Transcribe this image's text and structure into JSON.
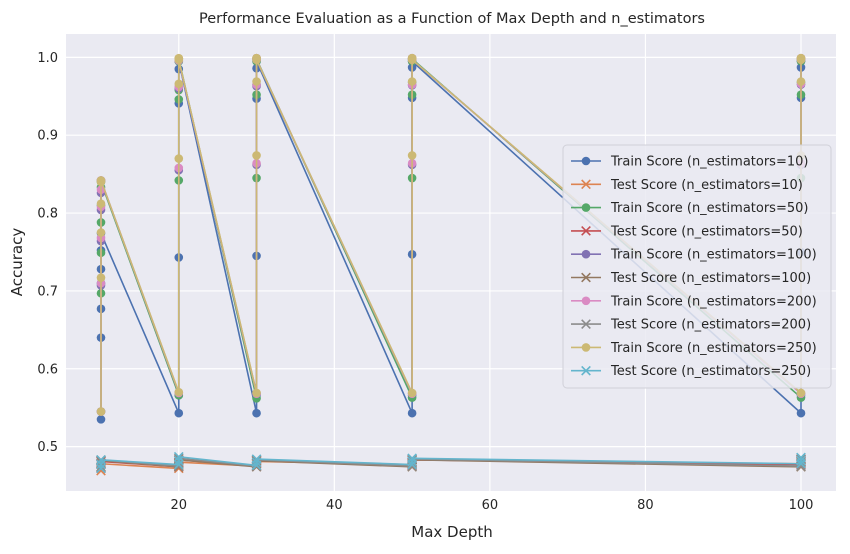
{
  "chart_data": {
    "type": "line",
    "title": "Performance Evaluation as a Function of Max Depth and n_estimators",
    "xlabel": "Max Depth",
    "ylabel": "Accuracy",
    "xlim": [
      5.5,
      104.5
    ],
    "ylim": [
      0.443,
      1.03
    ],
    "xticks": [
      20,
      40,
      60,
      80,
      100
    ],
    "yticks": [
      0.5,
      0.6,
      0.7,
      0.8,
      0.9,
      1.0
    ],
    "x": [
      10,
      20,
      30,
      50,
      100
    ],
    "grid": true,
    "legend_position": "center right",
    "background": "#eaeaf2",
    "series": [
      {
        "name": "Train Score (n_estimators=10)",
        "marker": "circle",
        "color": "#4c72b0",
        "x": [
          10,
          10,
          10,
          10,
          10,
          10,
          10,
          20,
          20,
          20,
          20,
          20,
          20,
          30,
          30,
          30,
          30,
          30,
          30,
          50,
          50,
          50,
          50,
          50,
          50,
          100,
          100,
          100,
          100,
          100,
          100
        ],
        "y": [
          0.535,
          0.64,
          0.677,
          0.71,
          0.728,
          0.752,
          0.774,
          0.543,
          0.566,
          0.743,
          0.941,
          0.985,
          0.995,
          0.543,
          0.566,
          0.745,
          0.947,
          0.986,
          0.995,
          0.543,
          0.566,
          0.747,
          0.948,
          0.987,
          0.995,
          0.543,
          0.566,
          0.75,
          0.948,
          0.987,
          0.995
        ]
      },
      {
        "name": "Test Score (n_estimators=10)",
        "marker": "x",
        "color": "#dd8452",
        "x": [
          10,
          10,
          10,
          20,
          20,
          20,
          30,
          30,
          30,
          50,
          50,
          50,
          100,
          100,
          100
        ],
        "y": [
          0.469,
          0.474,
          0.478,
          0.472,
          0.476,
          0.48,
          0.475,
          0.478,
          0.481,
          0.477,
          0.48,
          0.483,
          0.478,
          0.481,
          0.484
        ]
      },
      {
        "name": "Train Score (n_estimators=50)",
        "marker": "circle",
        "color": "#55a868",
        "x": [
          10,
          10,
          10,
          10,
          10,
          10,
          10,
          20,
          20,
          20,
          20,
          20,
          20,
          30,
          30,
          30,
          30,
          30,
          30,
          50,
          50,
          50,
          50,
          50,
          50,
          100,
          100,
          100,
          100,
          100,
          100
        ],
        "y": [
          0.545,
          0.697,
          0.749,
          0.788,
          0.81,
          0.833,
          0.84,
          0.566,
          0.842,
          0.946,
          0.958,
          0.995,
          0.998,
          0.562,
          0.845,
          0.952,
          0.965,
          0.995,
          0.998,
          0.563,
          0.845,
          0.952,
          0.968,
          0.995,
          0.998,
          0.563,
          0.845,
          0.952,
          0.968,
          0.995,
          0.998
        ]
      },
      {
        "name": "Test Score (n_estimators=50)",
        "marker": "x",
        "color": "#c44e52",
        "x": [
          10,
          10,
          10,
          20,
          20,
          20,
          30,
          30,
          30,
          50,
          50,
          50,
          100,
          100,
          100
        ],
        "y": [
          0.472,
          0.477,
          0.481,
          0.474,
          0.479,
          0.483,
          0.475,
          0.479,
          0.482,
          0.476,
          0.48,
          0.483,
          0.477,
          0.481,
          0.484
        ]
      },
      {
        "name": "Train Score (n_estimators=100)",
        "marker": "circle",
        "color": "#8172b3",
        "x": [
          10,
          10,
          10,
          10,
          10,
          10,
          20,
          20,
          20,
          20,
          20,
          30,
          30,
          30,
          30,
          30,
          50,
          50,
          50,
          50,
          50,
          100,
          100,
          100,
          100,
          100
        ],
        "y": [
          0.545,
          0.707,
          0.764,
          0.804,
          0.826,
          0.842,
          0.569,
          0.855,
          0.96,
          0.998,
          0.996,
          0.568,
          0.862,
          0.963,
          0.999,
          0.997,
          0.568,
          0.862,
          0.964,
          0.999,
          0.997,
          0.568,
          0.862,
          0.965,
          0.999,
          0.997
        ]
      },
      {
        "name": "Test Score (n_estimators=100)",
        "marker": "x",
        "color": "#937860",
        "x": [
          10,
          10,
          10,
          20,
          20,
          20,
          30,
          30,
          30,
          50,
          50,
          50,
          100,
          100,
          100
        ],
        "y": [
          0.473,
          0.478,
          0.482,
          0.474,
          0.478,
          0.483,
          0.474,
          0.478,
          0.482,
          0.474,
          0.478,
          0.483,
          0.474,
          0.479,
          0.483
        ]
      },
      {
        "name": "Train Score (n_estimators=200)",
        "marker": "circle",
        "color": "#da8bc3",
        "x": [
          10,
          10,
          10,
          10,
          10,
          10,
          20,
          20,
          20,
          20,
          20,
          30,
          30,
          30,
          30,
          30,
          50,
          50,
          50,
          50,
          50,
          100,
          100,
          100,
          100,
          100
        ],
        "y": [
          0.545,
          0.71,
          0.768,
          0.808,
          0.83,
          0.842,
          0.569,
          0.858,
          0.962,
          0.998,
          0.996,
          0.568,
          0.864,
          0.965,
          0.999,
          0.997,
          0.568,
          0.864,
          0.965,
          0.999,
          0.997,
          0.568,
          0.864,
          0.966,
          0.999,
          0.997
        ]
      },
      {
        "name": "Test Score (n_estimators=200)",
        "marker": "x",
        "color": "#8c8c8c",
        "x": [
          10,
          10,
          10,
          20,
          20,
          20,
          30,
          30,
          30,
          50,
          50,
          50,
          100,
          100,
          100
        ],
        "y": [
          0.474,
          0.479,
          0.483,
          0.475,
          0.48,
          0.485,
          0.475,
          0.479,
          0.483,
          0.475,
          0.479,
          0.484,
          0.475,
          0.48,
          0.484
        ]
      },
      {
        "name": "Train Score (n_estimators=250)",
        "marker": "circle",
        "color": "#ccb974",
        "x": [
          10,
          10,
          10,
          10,
          10,
          10,
          20,
          20,
          20,
          20,
          20,
          20,
          30,
          30,
          30,
          30,
          30,
          30,
          50,
          50,
          50,
          50,
          50,
          50,
          100,
          100,
          100,
          100,
          100,
          100
        ],
        "y": [
          0.545,
          0.717,
          0.775,
          0.812,
          0.84,
          0.842,
          0.57,
          0.87,
          0.966,
          0.998,
          0.999,
          0.997,
          0.569,
          0.874,
          0.969,
          0.999,
          0.999,
          0.997,
          0.569,
          0.874,
          0.969,
          0.999,
          0.999,
          0.997,
          0.569,
          0.874,
          0.969,
          0.999,
          0.999,
          0.997
        ]
      },
      {
        "name": "Test Score (n_estimators=250)",
        "marker": "x",
        "color": "#64b5cd",
        "x": [
          10,
          10,
          10,
          20,
          20,
          20,
          30,
          30,
          30,
          50,
          50,
          50,
          100,
          100,
          100
        ],
        "y": [
          0.472,
          0.477,
          0.483,
          0.477,
          0.482,
          0.487,
          0.476,
          0.48,
          0.484,
          0.477,
          0.481,
          0.485,
          0.478,
          0.482,
          0.486
        ]
      }
    ]
  }
}
